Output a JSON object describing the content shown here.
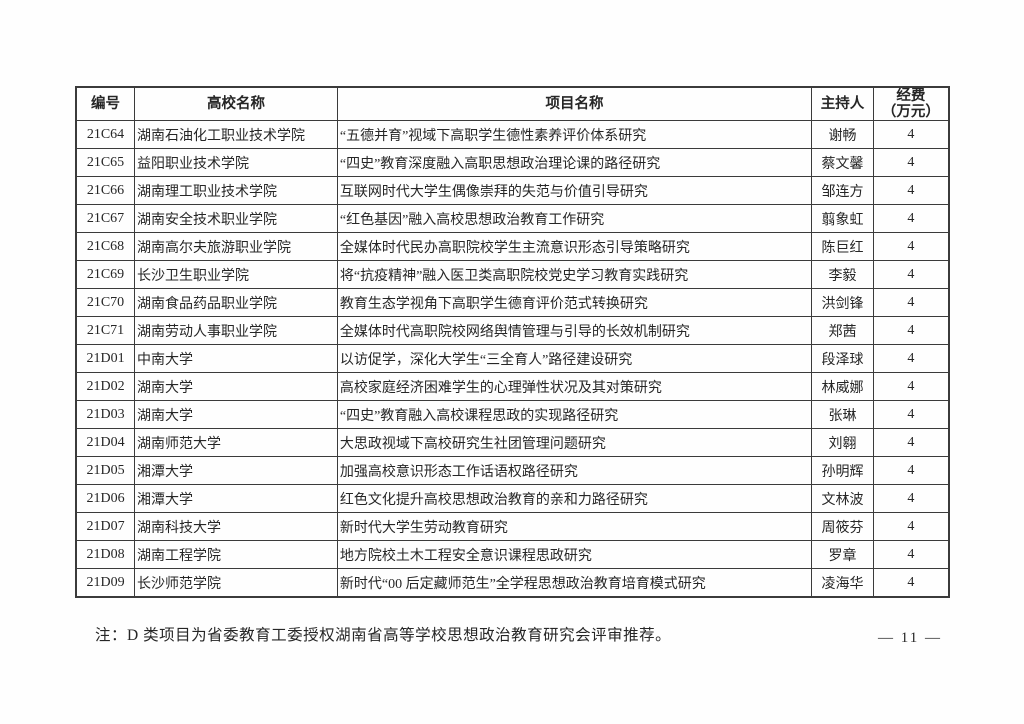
{
  "table": {
    "headers": {
      "id": "编号",
      "school": "高校名称",
      "project": "项目名称",
      "leader": "主持人",
      "funding_line1": "经费",
      "funding_line2": "（万元）"
    },
    "rows": [
      {
        "id": "21C64",
        "school": "湖南石油化工职业技术学院",
        "project": "“五德并育”视域下高职学生德性素养评价体系研究",
        "leader": "谢畅",
        "funding": "4"
      },
      {
        "id": "21C65",
        "school": "益阳职业技术学院",
        "project": "“四史”教育深度融入高职思想政治理论课的路径研究",
        "leader": "蔡文馨",
        "funding": "4"
      },
      {
        "id": "21C66",
        "school": "湖南理工职业技术学院",
        "project": "互联网时代大学生偶像崇拜的失范与价值引导研究",
        "leader": "邹连方",
        "funding": "4"
      },
      {
        "id": "21C67",
        "school": "湖南安全技术职业学院",
        "project": "“红色基因”融入高校思想政治教育工作研究",
        "leader": "翦象虹",
        "funding": "4"
      },
      {
        "id": "21C68",
        "school": "湖南高尔夫旅游职业学院",
        "project": "全媒体时代民办高职院校学生主流意识形态引导策略研究",
        "leader": "陈巨红",
        "funding": "4"
      },
      {
        "id": "21C69",
        "school": "长沙卫生职业学院",
        "project": "将“抗疫精神”融入医卫类高职院校党史学习教育实践研究",
        "leader": "李毅",
        "funding": "4"
      },
      {
        "id": "21C70",
        "school": "湖南食品药品职业学院",
        "project": "教育生态学视角下高职学生德育评价范式转换研究",
        "leader": "洪剑锋",
        "funding": "4"
      },
      {
        "id": "21C71",
        "school": "湖南劳动人事职业学院",
        "project": "全媒体时代高职院校网络舆情管理与引导的长效机制研究",
        "leader": "郑茜",
        "funding": "4"
      },
      {
        "id": "21D01",
        "school": "中南大学",
        "project": "以访促学，深化大学生“三全育人”路径建设研究",
        "leader": "段泽球",
        "funding": "4"
      },
      {
        "id": "21D02",
        "school": "湖南大学",
        "project": "高校家庭经济困难学生的心理弹性状况及其对策研究",
        "leader": "林威娜",
        "funding": "4"
      },
      {
        "id": "21D03",
        "school": "湖南大学",
        "project": "“四史”教育融入高校课程思政的实现路径研究",
        "leader": "张琳",
        "funding": "4"
      },
      {
        "id": "21D04",
        "school": "湖南师范大学",
        "project": "大思政视域下高校研究生社团管理问题研究",
        "leader": "刘翱",
        "funding": "4"
      },
      {
        "id": "21D05",
        "school": "湘潭大学",
        "project": "加强高校意识形态工作话语权路径研究",
        "leader": "孙明辉",
        "funding": "4"
      },
      {
        "id": "21D06",
        "school": "湘潭大学",
        "project": "红色文化提升高校思想政治教育的亲和力路径研究",
        "leader": "文林波",
        "funding": "4"
      },
      {
        "id": "21D07",
        "school": "湖南科技大学",
        "project": "新时代大学生劳动教育研究",
        "leader": "周筱芬",
        "funding": "4"
      },
      {
        "id": "21D08",
        "school": "湖南工程学院",
        "project": "地方院校土木工程安全意识课程思政研究",
        "leader": "罗章",
        "funding": "4"
      },
      {
        "id": "21D09",
        "school": "长沙师范学院",
        "project": "新时代“00 后定藏师范生”全学程思想政治教育培育模式研究",
        "leader": "凌海华",
        "funding": "4"
      }
    ]
  },
  "note": "注：D 类项目为省委教育工委授权湖南省高等学校思想政治教育研究会评审推荐。",
  "page_number": "—  11  —"
}
